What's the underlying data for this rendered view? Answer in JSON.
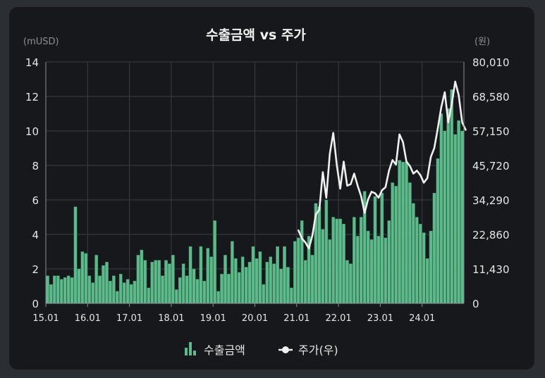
{
  "colors": {
    "bar": "#5dba8a",
    "bar_stroke": "#3d8a63",
    "line": "#f0f0f0",
    "grid": "#3a3e44",
    "axis": "#8a8e95",
    "text": "#e6e6e6"
  },
  "chart_data": {
    "type": "bar",
    "title": "수출금액 vs 주가",
    "y_left_unit": "(mUSD)",
    "y_right_unit": "(원)",
    "ylim_left": [
      0,
      14
    ],
    "ylim_right": [
      0,
      80010
    ],
    "y_left_ticks": [
      "14",
      "12",
      "10",
      "8",
      "6",
      "4",
      "2",
      "0"
    ],
    "y_right_ticks": [
      "80,010",
      "68,580",
      "57,150",
      "45,720",
      "34,290",
      "22,860",
      "11,430",
      "0"
    ],
    "x_ticks": [
      "15.01",
      "16.01",
      "17.01",
      "18.01",
      "19.01",
      "20.01",
      "21.01",
      "22.01",
      "23.01",
      "24.01"
    ],
    "x_range_months": [
      0,
      119
    ],
    "legend": [
      "수출금액",
      "주가(우)"
    ],
    "series": [
      {
        "name": "수출금액",
        "type": "bar",
        "axis": "left",
        "x_month_index_start": 0,
        "values": [
          1.6,
          1.1,
          1.6,
          1.6,
          1.4,
          1.5,
          1.6,
          1.5,
          5.6,
          2.0,
          3.0,
          2.9,
          1.6,
          1.2,
          2.8,
          1.6,
          2.2,
          2.4,
          1.3,
          1.6,
          0.7,
          1.7,
          1.2,
          1.4,
          1.1,
          1.3,
          2.8,
          3.1,
          2.5,
          0.9,
          2.4,
          2.5,
          2.5,
          1.6,
          2.5,
          2.3,
          2.8,
          0.8,
          1.5,
          2.3,
          1.6,
          3.3,
          2.0,
          1.4,
          3.3,
          1.3,
          3.2,
          2.7,
          4.8,
          0.7,
          1.7,
          2.8,
          1.7,
          3.6,
          2.6,
          1.8,
          2.7,
          2.1,
          2.4,
          3.3,
          2.6,
          3.0,
          1.1,
          2.4,
          2.7,
          2.3,
          3.3,
          2.0,
          3.3,
          2.1,
          0.9,
          3.6,
          3.8,
          4.8,
          2.5,
          3.9,
          2.8,
          5.8,
          5.6,
          4.3,
          6.0,
          3.7,
          5.0,
          4.9,
          4.9,
          4.6,
          2.5,
          2.3,
          5.0,
          3.9,
          5.0,
          6.5,
          4.2,
          3.7,
          6.2,
          3.9,
          6.4,
          3.8,
          4.8,
          7.0,
          6.8,
          8.3,
          8.2,
          8.2,
          7.0,
          5.8,
          5.0,
          4.6,
          4.1,
          2.6,
          4.2,
          6.4,
          8.4,
          11.0,
          10.0,
          11.3,
          12.4,
          9.8,
          10.6,
          10.0
        ]
      },
      {
        "name": "주가(우)",
        "type": "line",
        "axis": "right",
        "x_month_index_start": 72,
        "values": [
          24200,
          21500,
          20200,
          18200,
          22500,
          29500,
          31000,
          43500,
          35000,
          49500,
          56500,
          46000,
          38000,
          47000,
          39000,
          39500,
          43000,
          39000,
          35500,
          30000,
          34500,
          37000,
          36500,
          35000,
          37500,
          38500,
          44000,
          47500,
          46000,
          56000,
          53500,
          47000,
          45500,
          43000,
          44000,
          42500,
          40000,
          41500,
          48500,
          51500,
          58000,
          65000,
          70000,
          60000,
          66000,
          73500,
          69000,
          60000,
          57500
        ]
      }
    ]
  }
}
